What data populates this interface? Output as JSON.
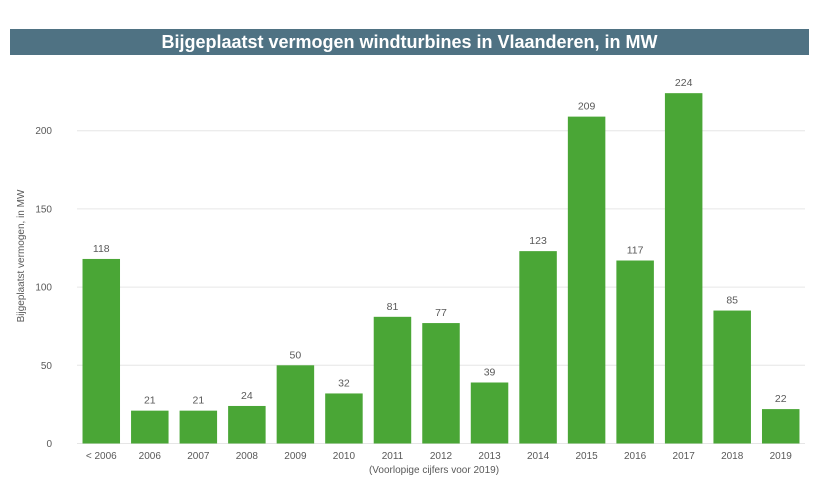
{
  "colors": {
    "title_background": "#4f7283",
    "title_text": "#ffffff",
    "bar": "#4aa636",
    "gridline": "#e6e6e6",
    "text": "#595959"
  },
  "chart_data": {
    "type": "bar",
    "title": "Bijgeplaatst vermogen windturbines in Vlaanderen, in MW",
    "ylabel": "Bijgeplaatst vermogen, in MW",
    "xnote": "(Voorlopige cijfers voor 2019)",
    "categories": [
      "< 2006",
      "2006",
      "2007",
      "2008",
      "2009",
      "2010",
      "2011",
      "2012",
      "2013",
      "2014",
      "2015",
      "2016",
      "2017",
      "2018",
      "2019"
    ],
    "values": [
      118,
      21,
      21,
      24,
      50,
      32,
      81,
      77,
      39,
      123,
      209,
      117,
      224,
      85,
      22
    ],
    "yticks": [
      0,
      50,
      100,
      150,
      200
    ],
    "ylim": [
      0,
      230
    ],
    "grid": true,
    "legend": "none"
  }
}
